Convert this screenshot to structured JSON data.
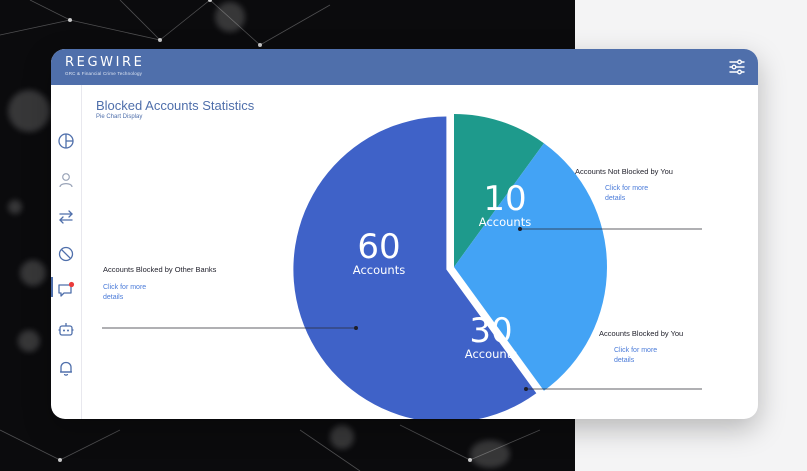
{
  "app": {
    "logo_word": "REGWIRE",
    "logo_tagline": "GRC & Financial Crime Technology"
  },
  "header": {
    "filter_icon": "sliders-icon"
  },
  "sidebar": {
    "items": [
      {
        "name": "dashboard",
        "icon": "pie-chart-icon"
      },
      {
        "name": "users",
        "icon": "user-icon"
      },
      {
        "name": "transfers",
        "icon": "swap-arrows-icon"
      },
      {
        "name": "blocked",
        "icon": "block-icon"
      },
      {
        "name": "messages",
        "icon": "chat-icon"
      },
      {
        "name": "bot",
        "icon": "robot-icon"
      },
      {
        "name": "notifications",
        "icon": "bell-icon"
      }
    ]
  },
  "page": {
    "title": "Blocked Accounts Statistics",
    "subtitle": "Pie Chart Display"
  },
  "chart_data": {
    "type": "pie",
    "slices": [
      {
        "label": "Accounts Not Blocked by You",
        "value": 10,
        "unit": "Accounts",
        "color": "#1e9a8c",
        "link": "Click for more details"
      },
      {
        "label": "Accounts Blocked by You",
        "value": 30,
        "unit": "Accounts",
        "color": "#43a3f5",
        "link": "Click for more details"
      },
      {
        "label": "Accounts Blocked by Other Banks",
        "value": 60,
        "unit": "Accounts",
        "color": "#3f62c8",
        "link": "Click for more details"
      }
    ]
  },
  "colors": {
    "brand": "#4f6fab",
    "link": "#4a7bd9"
  }
}
